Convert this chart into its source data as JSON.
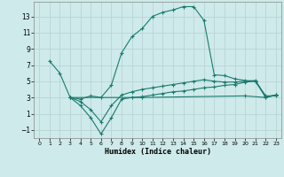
{
  "xlabel": "Humidex (Indice chaleur)",
  "bg_color": "#ceeaea",
  "grid_color": "#b8d4d4",
  "line_color": "#1a7a6e",
  "xlim": [
    -0.5,
    23.5
  ],
  "ylim": [
    -2.0,
    14.8
  ],
  "xticks": [
    0,
    1,
    2,
    3,
    4,
    5,
    6,
    7,
    8,
    9,
    10,
    11,
    12,
    13,
    14,
    15,
    16,
    17,
    18,
    19,
    20,
    21,
    22,
    23
  ],
  "yticks": [
    -1,
    1,
    3,
    5,
    7,
    9,
    11,
    13
  ],
  "series1_x": [
    1,
    2,
    3,
    4,
    5,
    6,
    7,
    8,
    9,
    10,
    11,
    12,
    13,
    14,
    15,
    16,
    17,
    18,
    19,
    20,
    21,
    22,
    23
  ],
  "series1_y": [
    7.5,
    6.0,
    3.0,
    2.8,
    3.2,
    3.0,
    4.5,
    8.5,
    10.5,
    11.5,
    13.0,
    13.5,
    13.8,
    14.2,
    14.2,
    12.5,
    5.8,
    5.7,
    5.3,
    5.1,
    5.0,
    3.2,
    3.2
  ],
  "series2_x": [
    3,
    4,
    5,
    6,
    7,
    8,
    9,
    10,
    11,
    12,
    13,
    14,
    15,
    16,
    17,
    18,
    19,
    20,
    21,
    22,
    23
  ],
  "series2_y": [
    3.0,
    2.0,
    0.5,
    -1.5,
    0.5,
    2.8,
    3.0,
    3.1,
    3.3,
    3.5,
    3.7,
    3.8,
    4.0,
    4.2,
    4.3,
    4.5,
    4.6,
    4.9,
    5.0,
    3.0,
    3.3
  ],
  "series3_x": [
    3,
    4,
    5,
    6,
    7,
    8,
    9,
    10,
    11,
    12,
    13,
    14,
    15,
    16,
    17,
    18,
    19,
    20,
    21,
    22,
    23
  ],
  "series3_y": [
    3.0,
    2.5,
    1.5,
    0.0,
    2.0,
    3.3,
    3.7,
    4.0,
    4.2,
    4.4,
    4.6,
    4.8,
    5.0,
    5.2,
    5.0,
    4.9,
    4.9,
    5.0,
    5.1,
    3.1,
    3.3
  ],
  "series4_x": [
    3,
    10,
    20,
    22,
    23
  ],
  "series4_y": [
    3.0,
    3.0,
    3.2,
    3.0,
    3.3
  ]
}
